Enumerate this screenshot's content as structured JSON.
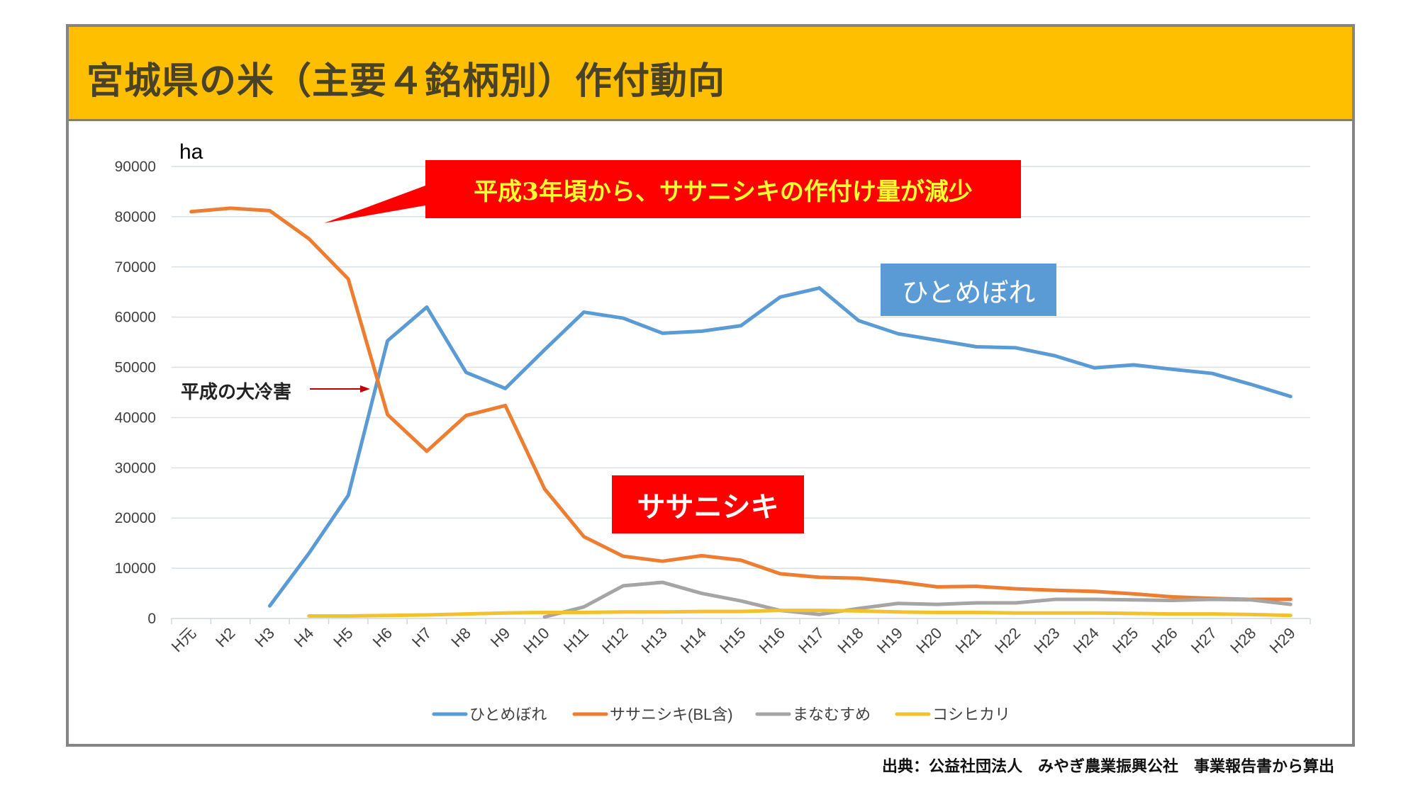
{
  "header": {
    "title": "宮城県の米（主要４銘柄別）作付動向"
  },
  "annotations": {
    "callout": "平成3年頃から、ササニシキの作付け量が減少",
    "hitomebore_label": "ひとめぼれ",
    "sasanishiki_label": "ササニシキ",
    "cold_damage": "平成の大冷害"
  },
  "footer": {
    "source": "出典：公益社団法人　みやぎ農業振興公社　事業報告書から算出"
  },
  "colors": {
    "header_bg": "#fdbf00",
    "hitomebore": "#5b9bd5",
    "sasanishiki": "#ed7d31",
    "manamusume": "#a5a5a5",
    "koshihikari": "#f2c12e",
    "annotation_red": "#ff0000",
    "annotation_blue": "#5b9bd5"
  },
  "chart_data": {
    "type": "line",
    "title": "宮城県の米（主要４銘柄別）作付動向",
    "xlabel": "",
    "ylabel": "ha",
    "ylim": [
      0,
      90000
    ],
    "yticks": [
      0,
      10000,
      20000,
      30000,
      40000,
      50000,
      60000,
      70000,
      80000,
      90000
    ],
    "grid": true,
    "legend_position": "bottom",
    "categories": [
      "H元",
      "H2",
      "H3",
      "H4",
      "H5",
      "H6",
      "H7",
      "H8",
      "H9",
      "H10",
      "H11",
      "H12",
      "H13",
      "H14",
      "H15",
      "H16",
      "H17",
      "H18",
      "H19",
      "H20",
      "H21",
      "H22",
      "H23",
      "H24",
      "H25",
      "H26",
      "H27",
      "H28",
      "H29"
    ],
    "series": [
      {
        "name": "ひとめぼれ",
        "color": "#5b9bd5",
        "values": [
          null,
          null,
          2500,
          13000,
          24500,
          55300,
          62000,
          49000,
          45800,
          53500,
          61000,
          59800,
          56800,
          57200,
          58300,
          64000,
          65800,
          59300,
          56700,
          55400,
          54100,
          53900,
          52300,
          49900,
          50500,
          49600,
          48800,
          46600,
          44200
        ]
      },
      {
        "name": "ササニシキ(BL含)",
        "color": "#ed7d31",
        "values": [
          81000,
          81700,
          81200,
          75600,
          67600,
          40600,
          33300,
          40400,
          42400,
          25800,
          16300,
          12400,
          11400,
          12500,
          11600,
          8900,
          8200,
          8000,
          7300,
          6300,
          6400,
          5900,
          5600,
          5400,
          4900,
          4300,
          4000,
          3800,
          3800
        ]
      },
      {
        "name": "まなむすめ",
        "color": "#a5a5a5",
        "values": [
          null,
          null,
          null,
          null,
          null,
          null,
          null,
          null,
          null,
          300,
          2300,
          6500,
          7200,
          5000,
          3500,
          1600,
          800,
          2000,
          3000,
          2800,
          3100,
          3100,
          3800,
          3800,
          3700,
          3600,
          3800,
          3700,
          2800
        ]
      },
      {
        "name": "コシヒカリ",
        "color": "#f2c12e",
        "values": [
          null,
          null,
          null,
          500,
          500,
          600,
          700,
          900,
          1100,
          1200,
          1200,
          1300,
          1300,
          1400,
          1400,
          1600,
          1600,
          1500,
          1300,
          1200,
          1200,
          1100,
          1100,
          1100,
          1000,
          900,
          900,
          800,
          600
        ]
      }
    ]
  }
}
